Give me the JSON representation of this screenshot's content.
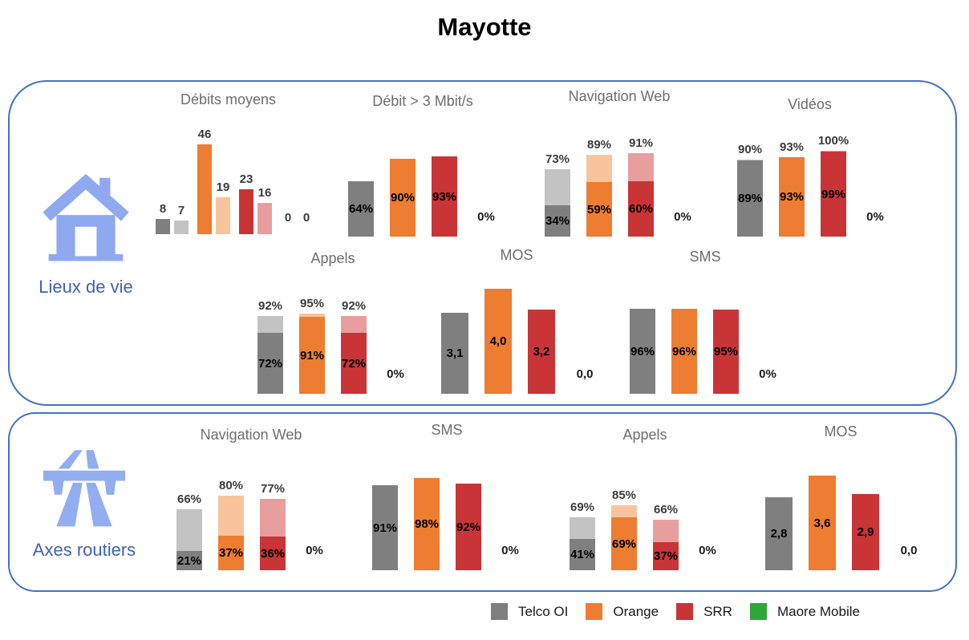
{
  "title": "Mayotte",
  "panels": [
    {
      "label": "Lieux de vie",
      "icon": "house-icon"
    },
    {
      "label": "Axes routiers",
      "icon": "highway-icon"
    }
  ],
  "operators": {
    "Telco OI": {
      "dark": "#7F7F7F",
      "light": "#C3C3C3"
    },
    "Orange": {
      "dark": "#ED7D31",
      "light": "#F9C49C"
    },
    "SRR": {
      "dark": "#C93437",
      "light": "#E89E9D"
    },
    "Maore Mobile": {
      "dark": "#2EA836",
      "light": "#9BD99E"
    }
  },
  "legend": {
    "items": [
      {
        "label": "Telco OI",
        "color": "#7F7F7F"
      },
      {
        "label": "Orange",
        "color": "#ED7D31"
      },
      {
        "label": "SRR",
        "color": "#C93437"
      },
      {
        "label": "Maore Mobile",
        "color": "#2EA836"
      }
    ]
  },
  "chart_data": [
    {
      "type": "bar",
      "variant": "pairs",
      "panel": "Lieux de vie",
      "title": "Débits moyens",
      "unit": "Mbit/s",
      "ymax": 46,
      "bars": [
        {
          "operator": "Telco OI",
          "shade": "dark",
          "value": 8,
          "label": "8"
        },
        {
          "operator": "Telco OI",
          "shade": "light",
          "value": 7,
          "label": "7"
        },
        {
          "operator": "Orange",
          "shade": "dark",
          "value": 46,
          "label": "46"
        },
        {
          "operator": "Orange",
          "shade": "light",
          "value": 19,
          "label": "19"
        },
        {
          "operator": "SRR",
          "shade": "dark",
          "value": 23,
          "label": "23"
        },
        {
          "operator": "SRR",
          "shade": "light",
          "value": 16,
          "label": "16"
        },
        {
          "operator": "Maore Mobile",
          "shade": "dark",
          "value": 0,
          "label": "0"
        },
        {
          "operator": "Maore Mobile",
          "shade": "light",
          "value": 0,
          "label": "0"
        }
      ]
    },
    {
      "type": "bar",
      "variant": "stacked",
      "panel": "Lieux de vie",
      "title": "Débit > 3 Mbit/s",
      "unit": "%",
      "ymax": 102,
      "bars": [
        {
          "operator": "Telco OI",
          "solid": 64,
          "solid_label": "64%"
        },
        {
          "operator": "Orange",
          "solid": 90,
          "solid_label": "90%"
        },
        {
          "operator": "SRR",
          "solid": 93,
          "solid_label": "93%"
        },
        {
          "operator": "Maore Mobile",
          "solid": 0,
          "zero_label": "0%"
        }
      ]
    },
    {
      "type": "bar",
      "variant": "stacked",
      "panel": "Lieux de vie",
      "title": "Navigation Web",
      "unit": "%",
      "ymax": 96,
      "bars": [
        {
          "operator": "Telco OI",
          "solid": 34,
          "solid_label": "34%",
          "total": 73,
          "total_label": "73%"
        },
        {
          "operator": "Orange",
          "solid": 59,
          "solid_label": "59%",
          "total": 89,
          "total_label": "89%"
        },
        {
          "operator": "SRR",
          "solid": 60,
          "solid_label": "60%",
          "total": 91,
          "total_label": "91%"
        },
        {
          "operator": "Maore Mobile",
          "solid": 0,
          "zero_label": "0%"
        }
      ]
    },
    {
      "type": "bar",
      "variant": "stacked",
      "panel": "Lieux de vie",
      "title": "Vidéos",
      "unit": "%",
      "ymax": 103,
      "bars": [
        {
          "operator": "Telco OI",
          "solid": 89,
          "solid_label": "89%",
          "total": 90,
          "total_label": "90%"
        },
        {
          "operator": "Orange",
          "solid": 93,
          "solid_label": "93%",
          "total": 93,
          "total_label": "93%"
        },
        {
          "operator": "SRR",
          "solid": 99,
          "solid_label": "99%",
          "total": 100,
          "total_label": "100%"
        },
        {
          "operator": "Maore Mobile",
          "solid": 0,
          "zero_label": "0%"
        }
      ]
    },
    {
      "type": "bar",
      "variant": "stacked",
      "panel": "Lieux de vie",
      "title": "Appels",
      "unit": "%",
      "ymax": 104,
      "bars": [
        {
          "operator": "Telco OI",
          "solid": 72,
          "solid_label": "72%",
          "total": 92,
          "total_label": "92%"
        },
        {
          "operator": "Orange",
          "solid": 91,
          "solid_label": "91%",
          "total": 95,
          "total_label": "95%"
        },
        {
          "operator": "SRR",
          "solid": 72,
          "solid_label": "72%",
          "total": 92,
          "total_label": "92%"
        },
        {
          "operator": "Maore Mobile",
          "solid": 0,
          "zero_label": "0%"
        }
      ]
    },
    {
      "type": "bar",
      "variant": "stacked",
      "panel": "Lieux de vie",
      "title": "MOS",
      "unit": "score",
      "ymax": 4.5,
      "bars": [
        {
          "operator": "Telco OI",
          "solid": 3.1,
          "solid_label": "3,1"
        },
        {
          "operator": "Orange",
          "solid": 4.0,
          "solid_label": "4,0"
        },
        {
          "operator": "SRR",
          "solid": 3.2,
          "solid_label": "3,2"
        },
        {
          "operator": "Maore Mobile",
          "solid": 0,
          "zero_label": "0,0"
        }
      ]
    },
    {
      "type": "bar",
      "variant": "stacked",
      "panel": "Lieux de vie",
      "title": "SMS",
      "unit": "%",
      "ymax": 100,
      "bars": [
        {
          "operator": "Telco OI",
          "solid": 96,
          "solid_label": "96%"
        },
        {
          "operator": "Orange",
          "solid": 96,
          "solid_label": "96%"
        },
        {
          "operator": "SRR",
          "solid": 95,
          "solid_label": "95%"
        },
        {
          "operator": "Maore Mobile",
          "solid": 0,
          "zero_label": "0%"
        }
      ]
    },
    {
      "type": "bar",
      "variant": "stacked",
      "panel": "Axes routiers",
      "title": "Navigation Web",
      "unit": "%",
      "ymax": 95,
      "bars": [
        {
          "operator": "Telco OI",
          "solid": 21,
          "solid_label": "21%",
          "total": 66,
          "total_label": "66%"
        },
        {
          "operator": "Orange",
          "solid": 37,
          "solid_label": "37%",
          "total": 80,
          "total_label": "80%"
        },
        {
          "operator": "SRR",
          "solid": 36,
          "solid_label": "36%",
          "total": 77,
          "total_label": "77%"
        },
        {
          "operator": "Maore Mobile",
          "solid": 0,
          "zero_label": "0%"
        }
      ]
    },
    {
      "type": "bar",
      "variant": "stacked",
      "panel": "Axes routiers",
      "title": "SMS",
      "unit": "%",
      "ymax": 94,
      "bars": [
        {
          "operator": "Telco OI",
          "solid": 91,
          "solid_label": "91%"
        },
        {
          "operator": "Orange",
          "solid": 98,
          "solid_label": "98%"
        },
        {
          "operator": "SRR",
          "solid": 92,
          "solid_label": "92%"
        },
        {
          "operator": "Maore Mobile",
          "solid": 0,
          "zero_label": "0%"
        }
      ]
    },
    {
      "type": "bar",
      "variant": "stacked",
      "panel": "Axes routiers",
      "title": "Appels",
      "unit": "%",
      "ymax": 115,
      "bars": [
        {
          "operator": "Telco OI",
          "solid": 41,
          "solid_label": "41%",
          "total": 69,
          "total_label": "69%"
        },
        {
          "operator": "Orange",
          "solid": 69,
          "solid_label": "69%",
          "total": 85,
          "total_label": "85%"
        },
        {
          "operator": "SRR",
          "solid": 37,
          "solid_label": "37%",
          "total": 66,
          "total_label": "66%"
        },
        {
          "operator": "Maore Mobile",
          "solid": 0,
          "zero_label": "0%"
        }
      ]
    },
    {
      "type": "bar",
      "variant": "stacked",
      "panel": "Axes routiers",
      "title": "MOS",
      "unit": "score",
      "ymax": 4.5,
      "bars": [
        {
          "operator": "Telco OI",
          "solid": 2.8,
          "solid_label": "2,8"
        },
        {
          "operator": "Orange",
          "solid": 3.6,
          "solid_label": "3,6"
        },
        {
          "operator": "SRR",
          "solid": 2.9,
          "solid_label": "2,9"
        },
        {
          "operator": "Maore Mobile",
          "solid": 0,
          "zero_label": "0,0"
        }
      ]
    }
  ]
}
